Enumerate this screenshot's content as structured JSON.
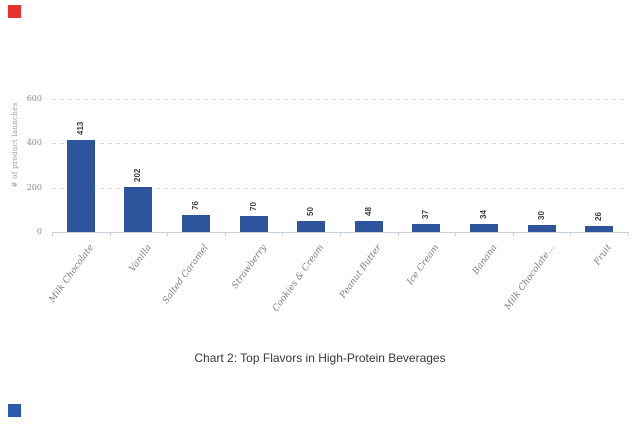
{
  "markers": {
    "top_left": {
      "shape": "square",
      "color": "#e8302e"
    },
    "bottom_left": {
      "shape": "square",
      "color": "#2a59ad"
    }
  },
  "chart_data": {
    "type": "bar",
    "title": "Chart 2: Top Flavors in High-Protein Beverages",
    "categories": [
      "Milk Chocolate",
      "Vanilla",
      "Salted Caramel",
      "Strawberry",
      "Cookies & Cream",
      "Peanut Butter",
      "Ice Cream",
      "Banana",
      "Milk Chocolate…",
      "Fruit"
    ],
    "values": [
      413,
      202,
      76,
      70,
      50,
      48,
      37,
      34,
      30,
      26
    ],
    "xlabel": "",
    "ylabel": "# of product launches",
    "yticks": [
      0,
      200,
      400,
      600
    ],
    "ylim": [
      0,
      600
    ],
    "grid": "horizontal-dashed",
    "legend_position": "none",
    "bar_color": "#2d549d",
    "value_label_style": "rotated-vertical-above-bar",
    "category_label_rotation_deg": 54
  },
  "caption": {
    "text": "Chart 2: Top Flavors in High-Protein Beverages"
  }
}
